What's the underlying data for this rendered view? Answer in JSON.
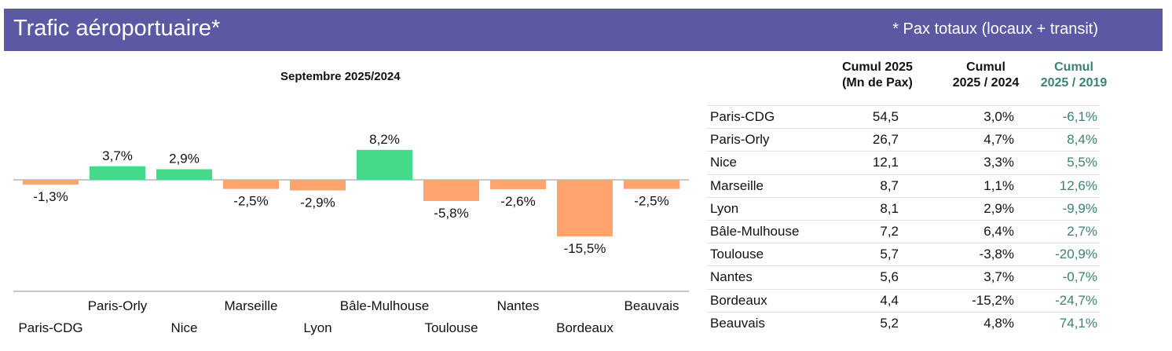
{
  "header": {
    "title": "Trafic aéroportuaire*",
    "note": "* Pax totaux (locaux + transit)"
  },
  "colors": {
    "header": "#5b58a4",
    "positive": "#45d98a",
    "negative": "#ffa46e",
    "teal": "#3d8077"
  },
  "chart_data": {
    "type": "bar",
    "title": "Septembre 2025/2024",
    "categories": [
      "Paris-CDG",
      "Paris-Orly",
      "Nice",
      "Marseille",
      "Lyon",
      "Bâle-Mulhouse",
      "Toulouse",
      "Nantes",
      "Bordeaux",
      "Beauvais"
    ],
    "values": [
      -1.3,
      3.7,
      2.9,
      -2.5,
      -2.9,
      8.2,
      -5.8,
      -2.6,
      -15.5,
      -2.5
    ],
    "labels": [
      "-1,3%",
      "3,7%",
      "2,9%",
      "-2,5%",
      "-2,9%",
      "8,2%",
      "-5,8%",
      "-2,6%",
      "-15,5%",
      "-2,5%"
    ],
    "xlabel": "",
    "ylabel": "",
    "grid": false
  },
  "table": {
    "headers": {
      "col1_line1": "Cumul 2025",
      "col1_line2": "(Mn de Pax)",
      "col2_line1": "Cumul",
      "col2_line2": "2025 / 2024",
      "col3_line1": "Cumul",
      "col3_line2": "2025 / 2019"
    },
    "rows": [
      {
        "airport": "Paris-CDG",
        "pax": "54,5",
        "vs2024": "3,0%",
        "vs2019": "-6,1%"
      },
      {
        "airport": "Paris-Orly",
        "pax": "26,7",
        "vs2024": "4,7%",
        "vs2019": "8,4%"
      },
      {
        "airport": "Nice",
        "pax": "12,1",
        "vs2024": "3,3%",
        "vs2019": "5,5%"
      },
      {
        "airport": "Marseille",
        "pax": "8,7",
        "vs2024": "1,1%",
        "vs2019": "12,6%"
      },
      {
        "airport": "Lyon",
        "pax": "8,1",
        "vs2024": "2,9%",
        "vs2019": "-9,9%"
      },
      {
        "airport": "Bâle-Mulhouse",
        "pax": "7,2",
        "vs2024": "6,4%",
        "vs2019": "2,7%"
      },
      {
        "airport": "Toulouse",
        "pax": "5,7",
        "vs2024": "-3,8%",
        "vs2019": "-20,9%"
      },
      {
        "airport": "Nantes",
        "pax": "5,6",
        "vs2024": "3,7%",
        "vs2019": "-0,7%"
      },
      {
        "airport": "Bordeaux",
        "pax": "4,4",
        "vs2024": "-15,2%",
        "vs2019": "-24,7%"
      },
      {
        "airport": "Beauvais",
        "pax": "5,2",
        "vs2024": "4,8%",
        "vs2019": "74,1%"
      }
    ]
  }
}
